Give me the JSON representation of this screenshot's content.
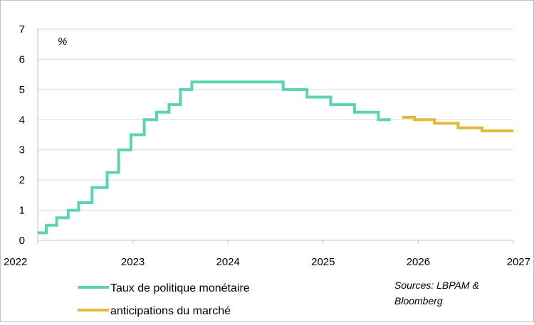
{
  "chart_data": {
    "type": "line",
    "unit_label": "%",
    "x_ticks": [
      "2022",
      "2023",
      "2024",
      "2025",
      "2026",
      "2027"
    ],
    "y_ticks": [
      "0",
      "1",
      "2",
      "3",
      "4",
      "5",
      "6",
      "7"
    ],
    "xlim": [
      2022,
      2027
    ],
    "ylim": [
      0,
      7
    ],
    "grid": true,
    "series": [
      {
        "name": "Taux de politique monétaire",
        "color": "#5ed2b5",
        "step": true,
        "points": [
          [
            2022.0,
            0.25
          ],
          [
            2022.09,
            0.5
          ],
          [
            2022.2,
            0.75
          ],
          [
            2022.32,
            1.0
          ],
          [
            2022.43,
            1.25
          ],
          [
            2022.57,
            1.75
          ],
          [
            2022.73,
            2.25
          ],
          [
            2022.85,
            3.0
          ],
          [
            2022.98,
            3.5
          ],
          [
            2023.12,
            4.0
          ],
          [
            2023.25,
            4.25
          ],
          [
            2023.38,
            4.5
          ],
          [
            2023.5,
            5.0
          ],
          [
            2023.62,
            5.25
          ],
          [
            2024.58,
            5.0
          ],
          [
            2024.83,
            4.75
          ],
          [
            2025.08,
            4.5
          ],
          [
            2025.33,
            4.25
          ],
          [
            2025.58,
            4.0
          ],
          [
            2025.71,
            4.0
          ]
        ]
      },
      {
        "name": "anticipations du marché",
        "color": "#e2b93b",
        "step": true,
        "points": [
          [
            2025.83,
            4.08
          ],
          [
            2025.96,
            4.0
          ],
          [
            2026.17,
            3.88
          ],
          [
            2026.42,
            3.73
          ],
          [
            2026.67,
            3.63
          ],
          [
            2027.0,
            3.63
          ]
        ]
      }
    ],
    "legend_position": "bottom-left",
    "source": "Sources: LBPAM & Bloomberg"
  }
}
